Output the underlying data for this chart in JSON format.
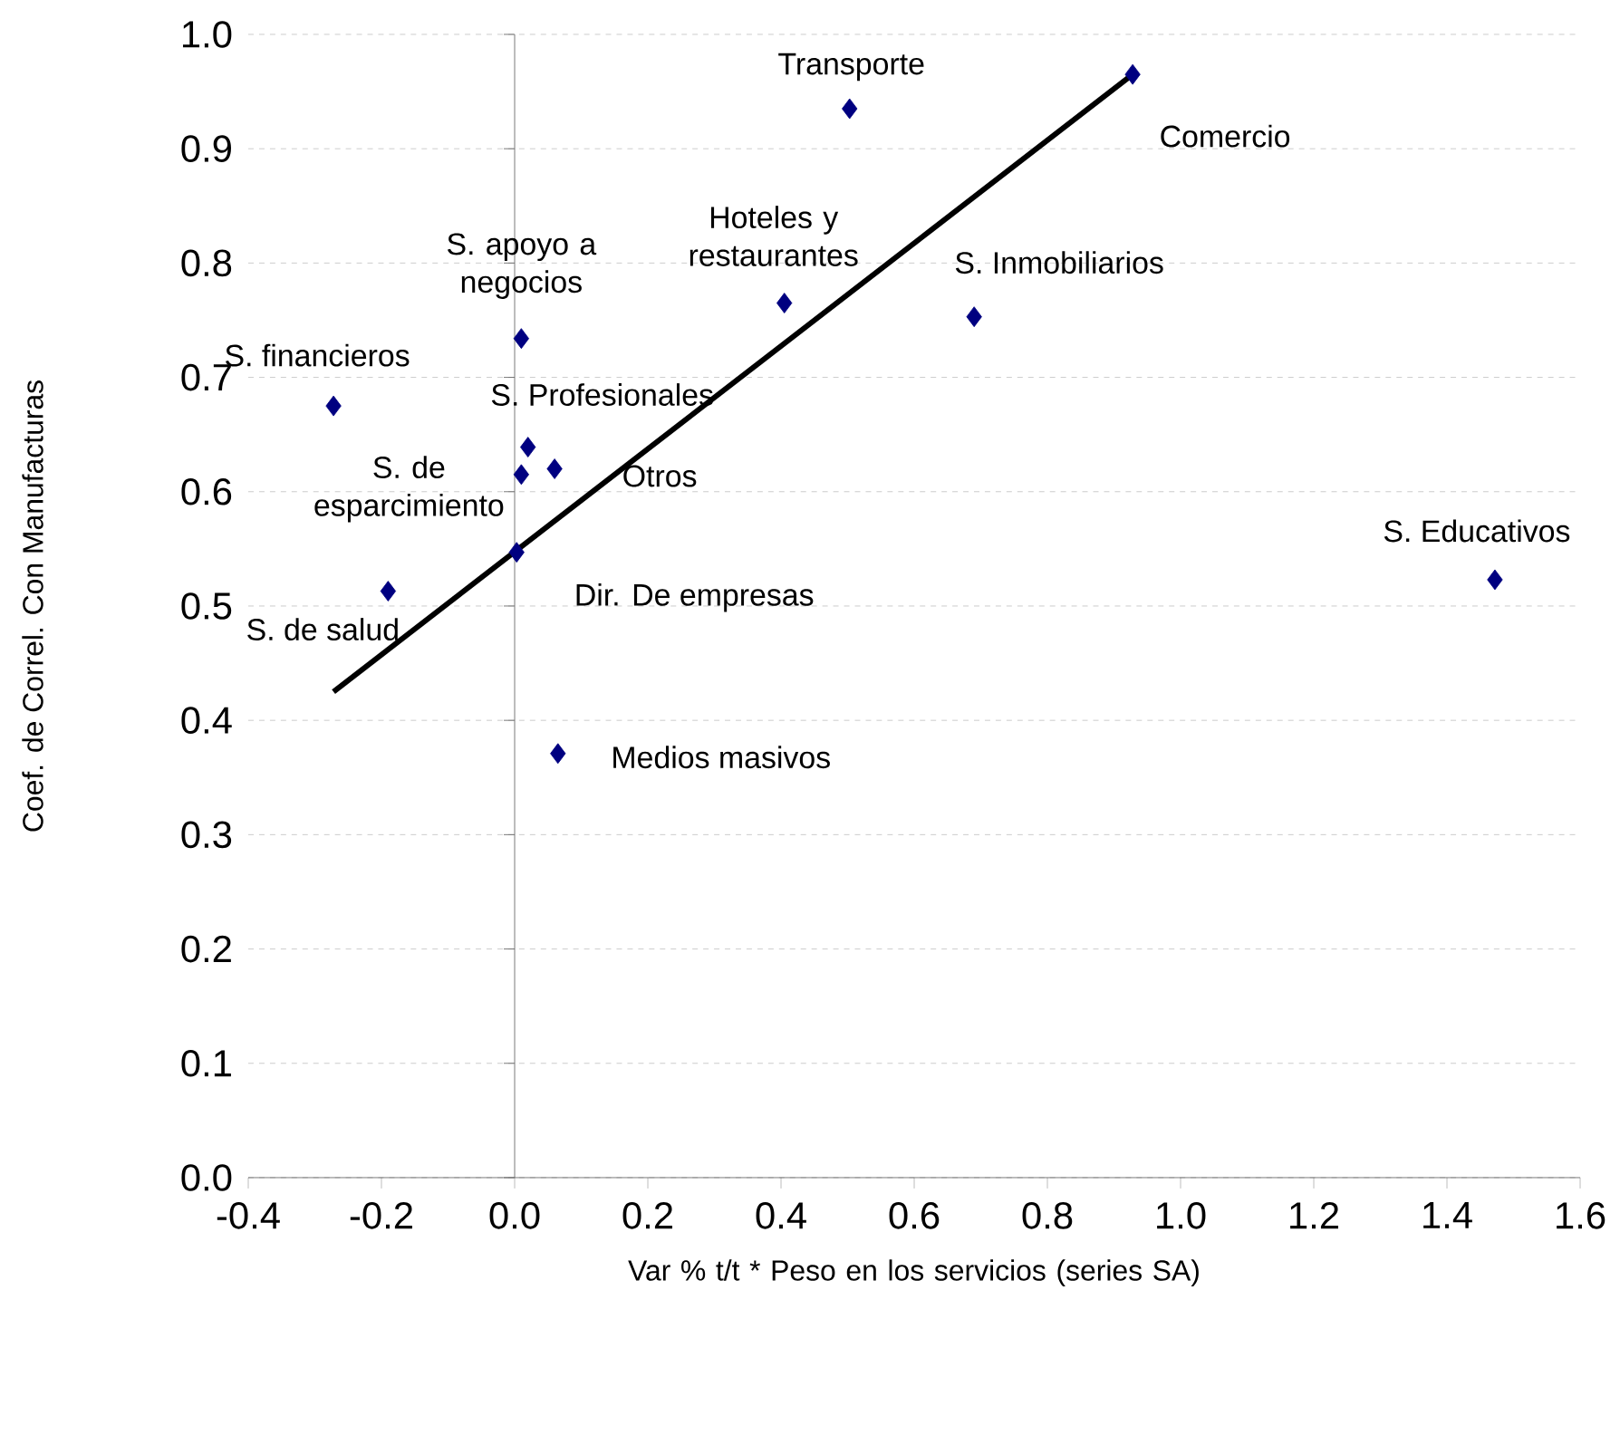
{
  "chart_data": {
    "type": "scatter",
    "xlabel": "Var % t/t * Peso en los servicios (series SA)",
    "ylabel": "Coef. de Correl. Con Manufacturas",
    "xlim": [
      -0.4,
      1.6
    ],
    "xticks": [
      {
        "value": -0.4,
        "label": "-0.4"
      },
      {
        "value": -0.2,
        "label": "-0.2"
      },
      {
        "value": 0,
        "label": "0.0"
      },
      {
        "value": 0.2,
        "label": "0.2"
      },
      {
        "value": 0.4,
        "label": "0.4"
      },
      {
        "value": 0.6,
        "label": "0.6"
      },
      {
        "value": 0.8,
        "label": "0.8"
      },
      {
        "value": 1.0,
        "label": "1.0"
      },
      {
        "value": 1.2,
        "label": "1.2"
      },
      {
        "value": 1.4,
        "label": "1.4"
      },
      {
        "value": 1.6,
        "label": "1.6"
      }
    ],
    "ylim": [
      0,
      1.0
    ],
    "yticks": [
      {
        "value": 0,
        "label": "0.0"
      },
      {
        "value": 0.1,
        "label": "0.1"
      },
      {
        "value": 0.2,
        "label": "0.2"
      },
      {
        "value": 0.3,
        "label": "0.3"
      },
      {
        "value": 0.4,
        "label": "0.4"
      },
      {
        "value": 0.5,
        "label": "0.5"
      },
      {
        "value": 0.6,
        "label": "0.6"
      },
      {
        "value": 0.7,
        "label": "0.7"
      },
      {
        "value": 0.8,
        "label": "0.8"
      },
      {
        "value": 0.9,
        "label": "0.9"
      },
      {
        "value": 1.0,
        "label": "1.0"
      }
    ],
    "grid": "y",
    "marker": "diamond",
    "series": [
      {
        "color": "#000080",
        "x": [
          -0.272,
          -0.19,
          0.01,
          0.02,
          0.06,
          0.003,
          0.01,
          0.065,
          0.405,
          0.503,
          0.69,
          0.928,
          1.472
        ],
        "values": [
          0.675,
          0.513,
          0.615,
          0.639,
          0.62,
          0.547,
          0.734,
          0.371,
          0.765,
          0.935,
          0.753,
          0.965,
          0.523
        ]
      },
      {
        "type": "line",
        "color": "#000000",
        "line_style": "solid",
        "marker": "none",
        "x": [
          -0.272,
          0.928
        ],
        "values": [
          0.425,
          0.965
        ]
      }
    ],
    "annotations": [
      {
        "text": "S. financieros",
        "x": -0.272,
        "y": 0.675
      },
      {
        "text": "S. de salud",
        "x": -0.19,
        "y": 0.513
      },
      {
        "text": "S. de esparcimiento",
        "x": 0.01,
        "y": 0.615
      },
      {
        "text": "S. Profesionales",
        "x": 0.02,
        "y": 0.639
      },
      {
        "text": "Otros",
        "x": 0.06,
        "y": 0.62
      },
      {
        "text": "Dir. De empresas",
        "x": 0.003,
        "y": 0.547
      },
      {
        "text": "S. apoyo a negocios",
        "x": 0.01,
        "y": 0.734
      },
      {
        "text": "Medios masivos",
        "x": 0.065,
        "y": 0.371
      },
      {
        "text": "Hoteles y restaurantes",
        "x": 0.405,
        "y": 0.765
      },
      {
        "text": "Transporte",
        "x": 0.503,
        "y": 0.935
      },
      {
        "text": "S. Inmobiliarios",
        "x": 0.69,
        "y": 0.753
      },
      {
        "text": "Comercio",
        "x": 0.928,
        "y": 0.965
      },
      {
        "text": "S. Educativos",
        "x": 1.472,
        "y": 0.523
      }
    ]
  }
}
